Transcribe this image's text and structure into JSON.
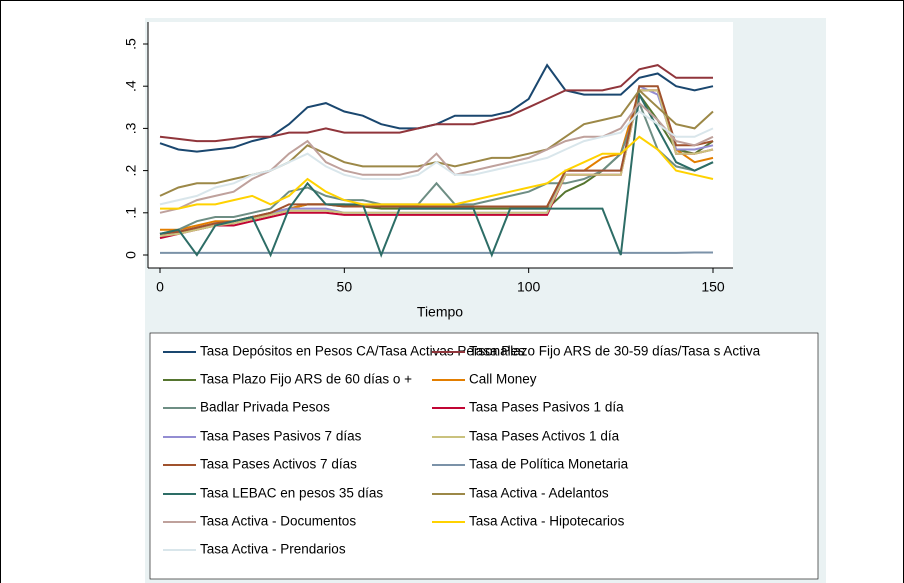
{
  "chart_data": {
    "type": "line",
    "x_label": "Tiempo",
    "legend": "bottom",
    "x": [
      0,
      5,
      10,
      15,
      20,
      25,
      30,
      35,
      40,
      45,
      50,
      55,
      60,
      65,
      70,
      75,
      80,
      85,
      90,
      95,
      100,
      105,
      110,
      115,
      120,
      125,
      130,
      135,
      140,
      145,
      150
    ],
    "xlim": [
      0,
      150
    ],
    "xticks": [
      0,
      50,
      100,
      150
    ],
    "ylim": [
      0,
      0.5
    ],
    "yticks": [
      0,
      {
        "value": 0.1,
        "label": ".1"
      },
      {
        "value": 0.2,
        "label": ".2"
      },
      {
        "value": 0.3,
        "label": ".3"
      },
      {
        "value": 0.4,
        "label": ".4"
      },
      {
        "value": 0.5,
        "label": ".5"
      }
    ],
    "series": [
      {
        "name": "Tasa Depósitos en Pesos CA/Tasa Activas Personales",
        "color": "#1a476f",
        "values": [
          0.265,
          0.25,
          0.245,
          0.25,
          0.255,
          0.27,
          0.28,
          0.31,
          0.35,
          0.36,
          0.34,
          0.33,
          0.31,
          0.3,
          0.3,
          0.31,
          0.33,
          0.33,
          0.33,
          0.34,
          0.37,
          0.45,
          0.39,
          0.38,
          0.38,
          0.38,
          0.42,
          0.43,
          0.4,
          0.39,
          0.4
        ]
      },
      {
        "name": "Tasa Plazo Fijo ARS de 30-59 días/Tasa s Activa",
        "color": "#90353b",
        "values": [
          0.28,
          0.275,
          0.27,
          0.27,
          0.275,
          0.28,
          0.28,
          0.29,
          0.29,
          0.3,
          0.29,
          0.29,
          0.29,
          0.29,
          0.3,
          0.31,
          0.31,
          0.31,
          0.32,
          0.33,
          0.35,
          0.37,
          0.39,
          0.39,
          0.39,
          0.4,
          0.44,
          0.45,
          0.42,
          0.42,
          0.42
        ]
      },
      {
        "name": "Tasa Plazo Fijo ARS de 60 días o +",
        "color": "#55752f",
        "values": [
          0.05,
          0.055,
          0.06,
          0.07,
          0.08,
          0.09,
          0.1,
          0.11,
          0.12,
          0.12,
          0.12,
          0.115,
          0.11,
          0.11,
          0.11,
          0.11,
          0.11,
          0.11,
          0.11,
          0.11,
          0.11,
          0.11,
          0.15,
          0.17,
          0.2,
          0.24,
          0.38,
          0.32,
          0.25,
          0.24,
          0.27
        ]
      },
      {
        "name": "Call Money",
        "color": "#e37e00",
        "values": [
          0.06,
          0.06,
          0.07,
          0.08,
          0.08,
          0.09,
          0.1,
          0.11,
          0.12,
          0.12,
          0.115,
          0.115,
          0.115,
          0.115,
          0.115,
          0.115,
          0.115,
          0.115,
          0.115,
          0.115,
          0.115,
          0.115,
          0.2,
          0.2,
          0.23,
          0.24,
          0.39,
          0.39,
          0.25,
          0.22,
          0.23
        ]
      },
      {
        "name": "Badlar Privada Pesos",
        "color": "#6e8e84",
        "values": [
          0.05,
          0.06,
          0.08,
          0.09,
          0.09,
          0.1,
          0.11,
          0.15,
          0.16,
          0.14,
          0.13,
          0.13,
          0.12,
          0.12,
          0.12,
          0.17,
          0.12,
          0.12,
          0.13,
          0.14,
          0.15,
          0.17,
          0.17,
          0.18,
          0.2,
          0.24,
          0.36,
          0.25,
          0.21,
          0.2,
          0.22
        ]
      },
      {
        "name": "Tasa Pases Pasivos 1 día",
        "color": "#c10534",
        "values": [
          0.04,
          0.05,
          0.06,
          0.07,
          0.07,
          0.08,
          0.09,
          0.1,
          0.1,
          0.1,
          0.095,
          0.095,
          0.095,
          0.095,
          0.095,
          0.095,
          0.095,
          0.095,
          0.095,
          0.095,
          0.095,
          0.095,
          0.19,
          0.19,
          0.19,
          0.19,
          0.39,
          0.39,
          0.24,
          0.24,
          0.25
        ]
      },
      {
        "name": "Tasa  Pases Pasivos 7 días",
        "color": "#938dd2",
        "values": [
          0.05,
          0.055,
          0.065,
          0.075,
          0.08,
          0.09,
          0.1,
          0.11,
          0.11,
          0.11,
          0.1,
          0.1,
          0.1,
          0.1,
          0.1,
          0.1,
          0.1,
          0.1,
          0.1,
          0.1,
          0.1,
          0.1,
          0.2,
          0.2,
          0.2,
          0.2,
          0.4,
          0.38,
          0.25,
          0.25,
          0.26
        ]
      },
      {
        "name": "Tasa Pases Activos 1 día",
        "color": "#cac27e",
        "values": [
          0.045,
          0.05,
          0.06,
          0.07,
          0.075,
          0.085,
          0.095,
          0.105,
          0.105,
          0.105,
          0.1,
          0.1,
          0.1,
          0.1,
          0.1,
          0.1,
          0.1,
          0.1,
          0.1,
          0.1,
          0.1,
          0.1,
          0.19,
          0.19,
          0.19,
          0.19,
          0.39,
          0.39,
          0.24,
          0.24,
          0.25
        ]
      },
      {
        "name": "Tasa Pases Activos 7 días",
        "color": "#a0522d",
        "values": [
          0.05,
          0.055,
          0.065,
          0.075,
          0.08,
          0.09,
          0.1,
          0.12,
          0.12,
          0.12,
          0.115,
          0.115,
          0.115,
          0.115,
          0.115,
          0.115,
          0.115,
          0.115,
          0.115,
          0.115,
          0.115,
          0.115,
          0.2,
          0.2,
          0.2,
          0.2,
          0.4,
          0.4,
          0.26,
          0.26,
          0.27
        ]
      },
      {
        "name": "Tasa de Política Monetaria",
        "color": "#7b92a8",
        "values": [
          0.005,
          0.005,
          0.005,
          0.005,
          0.005,
          0.005,
          0.005,
          0.005,
          0.005,
          0.005,
          0.005,
          0.005,
          0.005,
          0.005,
          0.005,
          0.005,
          0.005,
          0.005,
          0.005,
          0.005,
          0.005,
          0.005,
          0.005,
          0.005,
          0.005,
          0.005,
          0.005,
          0.005,
          0.005,
          0.006,
          0.006
        ]
      },
      {
        "name": "Tasa LEBAC en pesos 35 días",
        "color": "#2d6d66",
        "values": [
          0.05,
          0.06,
          0.0,
          0.07,
          0.08,
          0.09,
          0.0,
          0.11,
          0.17,
          0.12,
          0.12,
          0.12,
          0.0,
          0.11,
          0.11,
          0.11,
          0.11,
          0.11,
          0.0,
          0.11,
          0.11,
          0.11,
          0.11,
          0.11,
          0.11,
          0.0,
          0.38,
          0.3,
          0.22,
          0.2,
          0.22
        ]
      },
      {
        "name": "Tasa Activa - Adelantos",
        "color": "#9c8847",
        "values": [
          0.14,
          0.16,
          0.17,
          0.17,
          0.18,
          0.19,
          0.2,
          0.22,
          0.26,
          0.24,
          0.22,
          0.21,
          0.21,
          0.21,
          0.21,
          0.22,
          0.21,
          0.22,
          0.23,
          0.23,
          0.24,
          0.25,
          0.28,
          0.31,
          0.32,
          0.33,
          0.39,
          0.35,
          0.31,
          0.3,
          0.34
        ]
      },
      {
        "name": "Tasa  Activa - Documentos",
        "color": "#bfa19c",
        "values": [
          0.1,
          0.11,
          0.13,
          0.14,
          0.15,
          0.18,
          0.2,
          0.24,
          0.27,
          0.22,
          0.2,
          0.19,
          0.19,
          0.19,
          0.2,
          0.24,
          0.19,
          0.2,
          0.21,
          0.22,
          0.23,
          0.25,
          0.27,
          0.28,
          0.28,
          0.3,
          0.36,
          0.32,
          0.27,
          0.26,
          0.28
        ]
      },
      {
        "name": "Tasa Activa  - Hipotecarios",
        "color": "#ffd200",
        "values": [
          0.11,
          0.11,
          0.12,
          0.12,
          0.13,
          0.14,
          0.12,
          0.14,
          0.18,
          0.15,
          0.13,
          0.12,
          0.12,
          0.12,
          0.12,
          0.12,
          0.12,
          0.13,
          0.14,
          0.15,
          0.16,
          0.17,
          0.2,
          0.22,
          0.24,
          0.24,
          0.28,
          0.25,
          0.2,
          0.19,
          0.18
        ]
      },
      {
        "name": "Tasa Activa  - Prendarios",
        "color": "#d9e6eb",
        "values": [
          0.12,
          0.13,
          0.14,
          0.16,
          0.17,
          0.19,
          0.2,
          0.22,
          0.24,
          0.21,
          0.19,
          0.18,
          0.18,
          0.18,
          0.19,
          0.22,
          0.19,
          0.19,
          0.2,
          0.21,
          0.22,
          0.23,
          0.25,
          0.27,
          0.28,
          0.29,
          0.34,
          0.31,
          0.28,
          0.28,
          0.3
        ]
      }
    ]
  }
}
